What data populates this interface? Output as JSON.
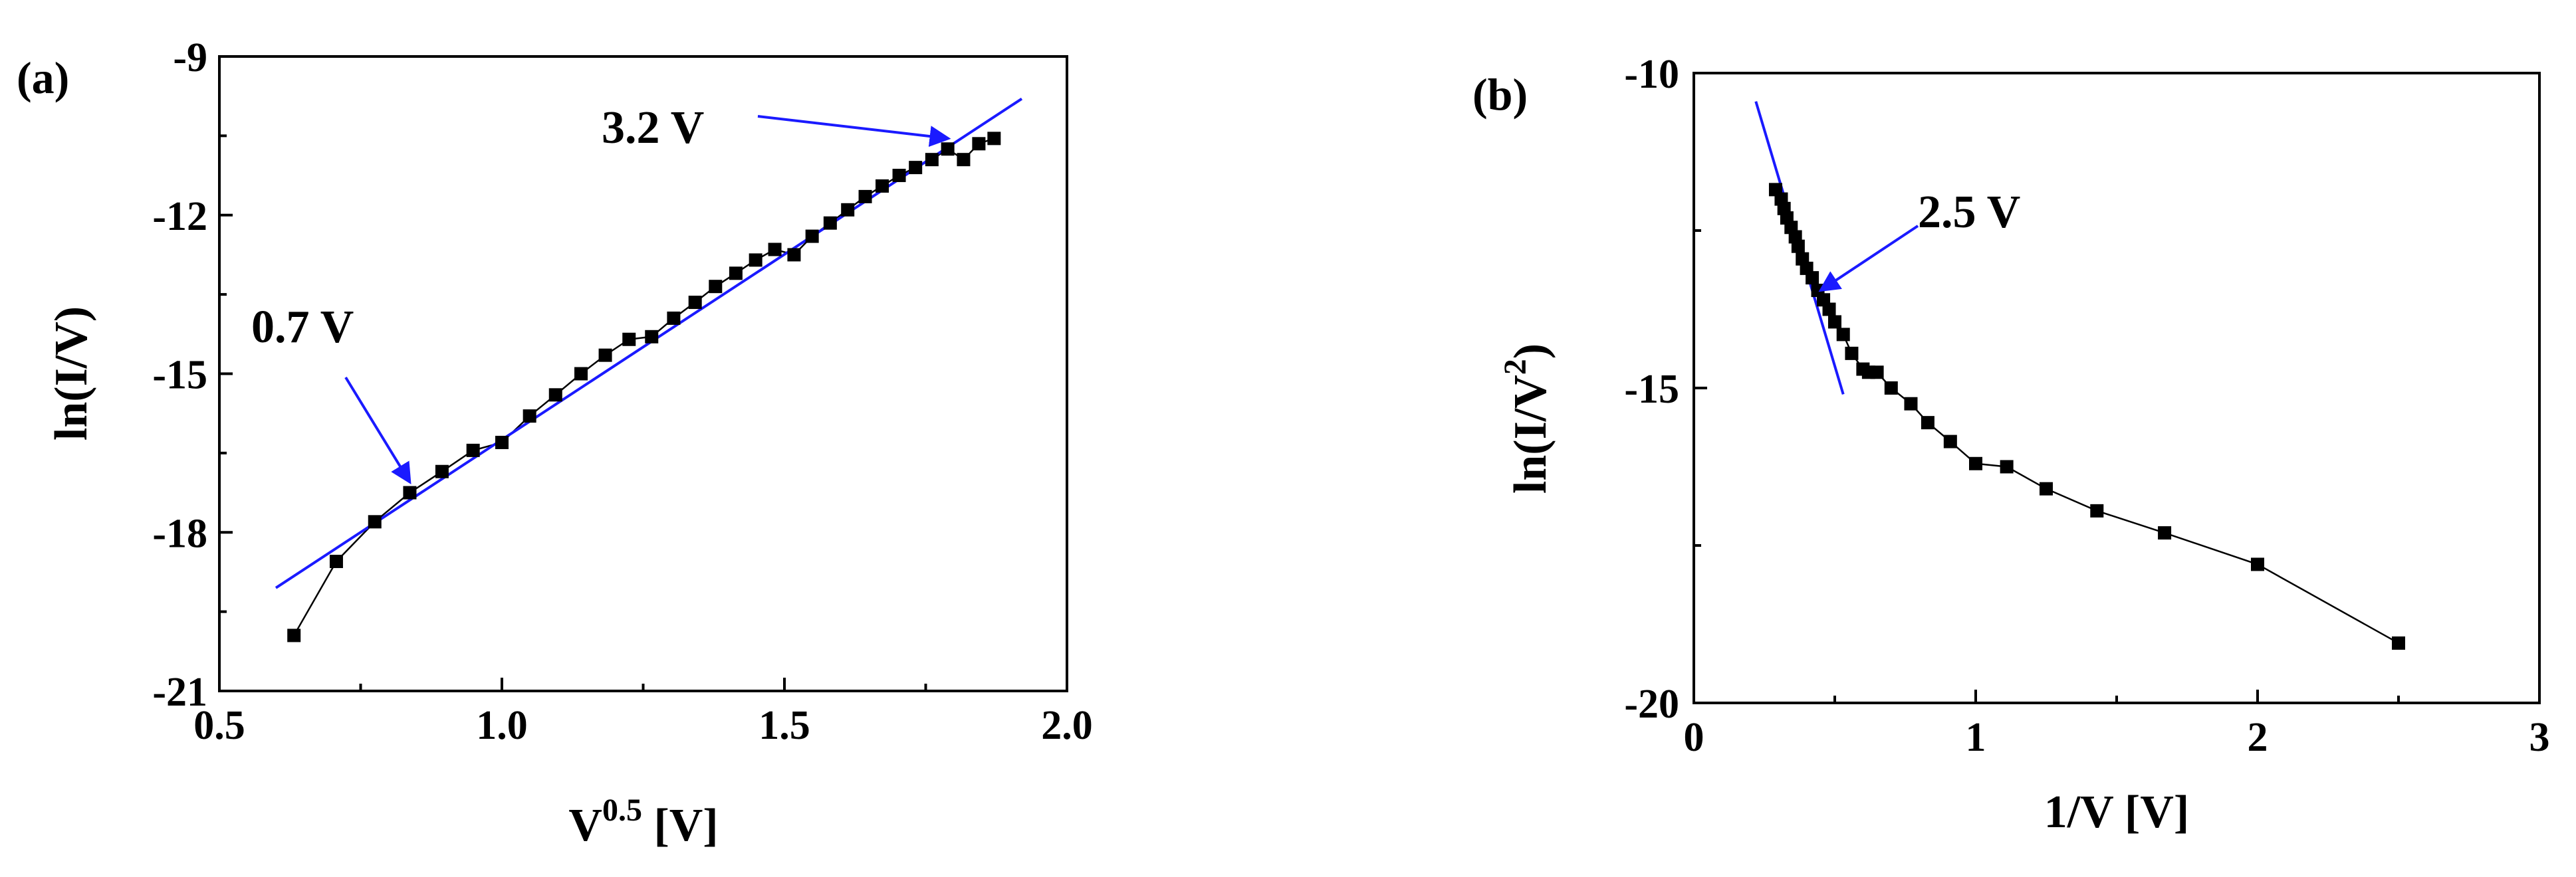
{
  "colors": {
    "fit": "#1a1aff",
    "marker": "#000000"
  },
  "chart_data": [
    {
      "type": "scatter",
      "panel_label": "(a)",
      "xlabel_main": "V",
      "xlabel_sup": "0.5",
      "xlabel_unit": " [V]",
      "ylabel": "ln(I/V)",
      "xlim": [
        0.5,
        2.0
      ],
      "ylim": [
        -21,
        -9
      ],
      "xticks": [
        0.5,
        1.0,
        1.5,
        2.0
      ],
      "xtick_labels": [
        "0.5",
        "1.0",
        "1.5",
        "2.0"
      ],
      "yticks": [
        -21,
        -18,
        -15,
        -12,
        -9
      ],
      "ytick_labels": [
        "-21",
        "-18",
        "-15",
        "-12",
        "-9"
      ],
      "grid": false,
      "connected": true,
      "x": [
        0.632,
        0.707,
        0.775,
        0.837,
        0.894,
        0.949,
        1.0,
        1.049,
        1.095,
        1.14,
        1.183,
        1.225,
        1.265,
        1.304,
        1.342,
        1.378,
        1.414,
        1.449,
        1.483,
        1.517,
        1.549,
        1.581,
        1.612,
        1.643,
        1.673,
        1.703,
        1.732,
        1.761,
        1.789,
        1.817,
        1.844,
        1.871
      ],
      "y": [
        -19.95,
        -18.55,
        -17.8,
        -17.25,
        -16.85,
        -16.45,
        -16.3,
        -15.8,
        -15.4,
        -15.0,
        -14.65,
        -14.35,
        -14.3,
        -13.95,
        -13.65,
        -13.35,
        -13.1,
        -12.85,
        -12.65,
        -12.75,
        -12.4,
        -12.15,
        -11.9,
        -11.65,
        -11.45,
        -11.25,
        -11.1,
        -10.95,
        -10.75,
        -10.95,
        -10.65,
        -10.55
      ],
      "fit_line": {
        "x": [
          0.6,
          1.92
        ],
        "y": [
          -19.05,
          -9.8
        ]
      },
      "annotations": [
        {
          "text": "0.7 V",
          "target_x": 0.837,
          "target_y": -17.05
        },
        {
          "text": "3.2 V",
          "target_x": 1.79,
          "target_y": -10.55
        }
      ]
    },
    {
      "type": "scatter",
      "panel_label": "(b)",
      "xlabel_main": "1/V [V]",
      "ylabel_main": "ln(I/V",
      "ylabel_sup": "2",
      "ylabel_tail": ")",
      "xlim": [
        0,
        3
      ],
      "ylim": [
        -20,
        -10
      ],
      "xticks": [
        0,
        1,
        2,
        3
      ],
      "xtick_labels": [
        "0",
        "1",
        "2",
        "3"
      ],
      "yticks": [
        -20,
        -15,
        -10
      ],
      "ytick_labels": [
        "-20",
        "-15",
        "-10"
      ],
      "grid": false,
      "connected": true,
      "x": [
        0.29,
        0.31,
        0.32,
        0.33,
        0.345,
        0.36,
        0.37,
        0.385,
        0.4,
        0.42,
        0.44,
        0.46,
        0.48,
        0.5,
        0.53,
        0.56,
        0.6,
        0.62,
        0.65,
        0.7,
        0.77,
        0.83,
        0.91,
        1.0,
        1.11,
        1.25,
        1.43,
        1.67,
        2.0,
        2.5
      ],
      "y": [
        -11.85,
        -12.0,
        -12.15,
        -12.3,
        -12.45,
        -12.6,
        -12.75,
        -12.95,
        -13.1,
        -13.25,
        -13.45,
        -13.6,
        -13.75,
        -13.95,
        -14.15,
        -14.45,
        -14.7,
        -14.75,
        -14.75,
        -15.0,
        -15.25,
        -15.55,
        -15.85,
        -16.2,
        -16.25,
        -16.6,
        -16.95,
        -17.3,
        -17.8,
        -19.05
      ],
      "fit_line": {
        "x": [
          0.22,
          0.53
        ],
        "y": [
          -10.45,
          -15.1
        ]
      },
      "annotations": [
        {
          "text": "2.5 V",
          "target_x": 0.45,
          "target_y": -13.45
        }
      ]
    }
  ]
}
